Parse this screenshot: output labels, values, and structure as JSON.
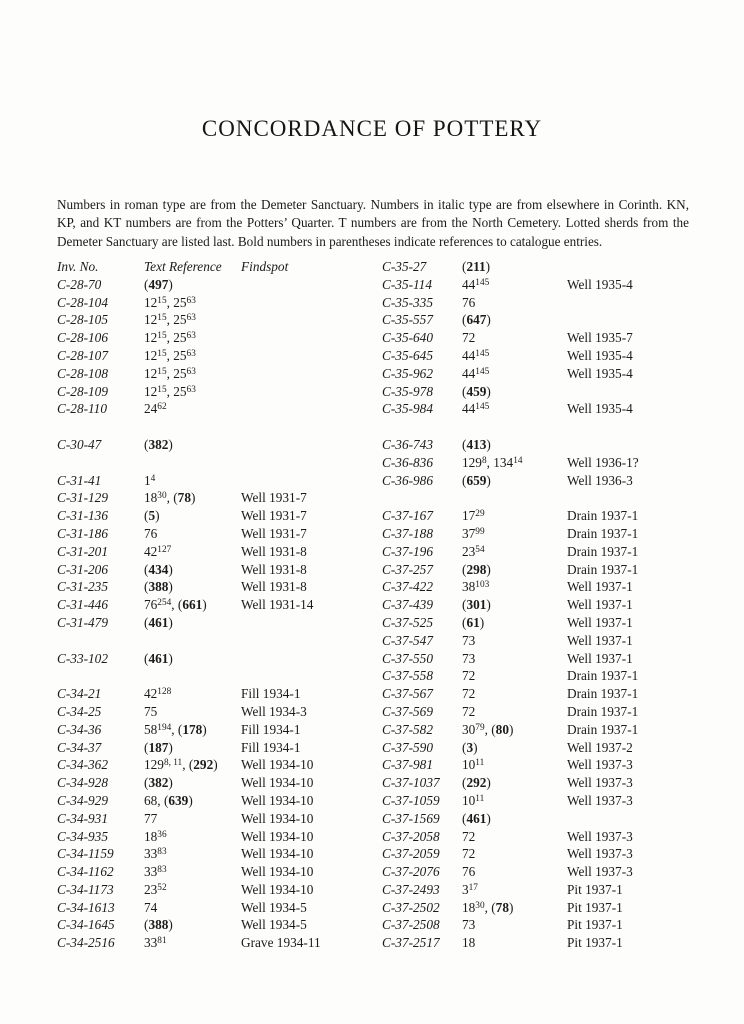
{
  "colors": {
    "ink": "#1b1b1b",
    "paper": "#fdfdfc"
  },
  "document": {
    "title": "CONCORDANCE OF POTTERY",
    "intro": "Numbers in roman type are from the Demeter Sanctuary. Numbers in italic type are from elsewhere in Corinth. KN, KP, and KT numbers are from the Potters’ Quarter. T numbers are from the North Cemetery. Lotted sherds from the Demeter Sanctuary are listed last. Bold numbers in parentheses indicate references to catalogue entries."
  },
  "concordance": {
    "headers": {
      "inv": "Inv. No.",
      "ref": "Text Reference",
      "find": "Findspot"
    },
    "left": [
      {
        "inv": "C-28-70",
        "ref": [
          [
            "t",
            "("
          ],
          [
            "b",
            "497"
          ],
          [
            "t",
            ")"
          ]
        ],
        "find": ""
      },
      {
        "inv": "C-28-104",
        "ref": [
          [
            "t",
            "12"
          ],
          [
            "s",
            "15"
          ],
          [
            "t",
            ", 25"
          ],
          [
            "s",
            "63"
          ]
        ],
        "find": ""
      },
      {
        "inv": "C-28-105",
        "ref": [
          [
            "t",
            "12"
          ],
          [
            "s",
            "15"
          ],
          [
            "t",
            ", 25"
          ],
          [
            "s",
            "63"
          ]
        ],
        "find": ""
      },
      {
        "inv": "C-28-106",
        "ref": [
          [
            "t",
            "12"
          ],
          [
            "s",
            "15"
          ],
          [
            "t",
            ", 25"
          ],
          [
            "s",
            "63"
          ]
        ],
        "find": ""
      },
      {
        "inv": "C-28-107",
        "ref": [
          [
            "t",
            "12"
          ],
          [
            "s",
            "15"
          ],
          [
            "t",
            ", 25"
          ],
          [
            "s",
            "63"
          ]
        ],
        "find": ""
      },
      {
        "inv": "C-28-108",
        "ref": [
          [
            "t",
            "12"
          ],
          [
            "s",
            "15"
          ],
          [
            "t",
            ", 25"
          ],
          [
            "s",
            "63"
          ]
        ],
        "find": ""
      },
      {
        "inv": "C-28-109",
        "ref": [
          [
            "t",
            "12"
          ],
          [
            "s",
            "15"
          ],
          [
            "t",
            ", 25"
          ],
          [
            "s",
            "63"
          ]
        ],
        "find": ""
      },
      {
        "inv": "C-28-110",
        "ref": [
          [
            "t",
            "24"
          ],
          [
            "s",
            "62"
          ]
        ],
        "find": ""
      },
      {
        "spacer": true
      },
      {
        "inv": "C-30-47",
        "ref": [
          [
            "t",
            "("
          ],
          [
            "b",
            "382"
          ],
          [
            "t",
            ")"
          ]
        ],
        "find": ""
      },
      {
        "spacer": true
      },
      {
        "inv": "C-31-41",
        "ref": [
          [
            "t",
            "1"
          ],
          [
            "s",
            "4"
          ]
        ],
        "find": ""
      },
      {
        "inv": "C-31-129",
        "ref": [
          [
            "t",
            "18"
          ],
          [
            "s",
            "30"
          ],
          [
            "t",
            ", ("
          ],
          [
            "b",
            "78"
          ],
          [
            "t",
            ")"
          ]
        ],
        "find": "Well 1931-7"
      },
      {
        "inv": "C-31-136",
        "ref": [
          [
            "t",
            "("
          ],
          [
            "b",
            "5"
          ],
          [
            "t",
            ")"
          ]
        ],
        "find": "Well 1931-7"
      },
      {
        "inv": "C-31-186",
        "ref": [
          [
            "t",
            "76"
          ]
        ],
        "find": "Well 1931-7"
      },
      {
        "inv": "C-31-201",
        "ref": [
          [
            "t",
            "42"
          ],
          [
            "s",
            "127"
          ]
        ],
        "find": "Well 1931-8"
      },
      {
        "inv": "C-31-206",
        "ref": [
          [
            "t",
            "("
          ],
          [
            "b",
            "434"
          ],
          [
            "t",
            ")"
          ]
        ],
        "find": "Well 1931-8"
      },
      {
        "inv": "C-31-235",
        "ref": [
          [
            "t",
            "("
          ],
          [
            "b",
            "388"
          ],
          [
            "t",
            ")"
          ]
        ],
        "find": "Well 1931-8"
      },
      {
        "inv": "C-31-446",
        "ref": [
          [
            "t",
            "76"
          ],
          [
            "s",
            "254"
          ],
          [
            "t",
            ", ("
          ],
          [
            "b",
            "661"
          ],
          [
            "t",
            ")"
          ]
        ],
        "find": "Well 1931-14"
      },
      {
        "inv": "C-31-479",
        "ref": [
          [
            "t",
            "("
          ],
          [
            "b",
            "461"
          ],
          [
            "t",
            ")"
          ]
        ],
        "find": ""
      },
      {
        "spacer": true
      },
      {
        "inv": "C-33-102",
        "ref": [
          [
            "t",
            "("
          ],
          [
            "b",
            "461"
          ],
          [
            "t",
            ")"
          ]
        ],
        "find": ""
      },
      {
        "spacer": true
      },
      {
        "inv": "C-34-21",
        "ref": [
          [
            "t",
            "42"
          ],
          [
            "s",
            "128"
          ]
        ],
        "find": "Fill 1934-1"
      },
      {
        "inv": "C-34-25",
        "ref": [
          [
            "t",
            "75"
          ]
        ],
        "find": "Well 1934-3"
      },
      {
        "inv": "C-34-36",
        "ref": [
          [
            "t",
            "58"
          ],
          [
            "s",
            "194"
          ],
          [
            "t",
            ", ("
          ],
          [
            "b",
            "178"
          ],
          [
            "t",
            ")"
          ]
        ],
        "find": "Fill 1934-1"
      },
      {
        "inv": "C-34-37",
        "ref": [
          [
            "t",
            "("
          ],
          [
            "b",
            "187"
          ],
          [
            "t",
            ")"
          ]
        ],
        "find": "Fill 1934-1"
      },
      {
        "inv": "C-34-362",
        "ref": [
          [
            "t",
            "129"
          ],
          [
            "s",
            "8, 11"
          ],
          [
            "t",
            ", ("
          ],
          [
            "b",
            "292"
          ],
          [
            "t",
            ")"
          ]
        ],
        "find": "Well 1934-10"
      },
      {
        "inv": "C-34-928",
        "ref": [
          [
            "t",
            "("
          ],
          [
            "b",
            "382"
          ],
          [
            "t",
            ")"
          ]
        ],
        "find": "Well 1934-10"
      },
      {
        "inv": "C-34-929",
        "ref": [
          [
            "t",
            "68, ("
          ],
          [
            "b",
            "639"
          ],
          [
            "t",
            ")"
          ]
        ],
        "find": "Well 1934-10"
      },
      {
        "inv": "C-34-931",
        "ref": [
          [
            "t",
            "77"
          ]
        ],
        "find": "Well 1934-10"
      },
      {
        "inv": "C-34-935",
        "ref": [
          [
            "t",
            "18"
          ],
          [
            "s",
            "36"
          ]
        ],
        "find": "Well 1934-10"
      },
      {
        "inv": "C-34-1159",
        "ref": [
          [
            "t",
            "33"
          ],
          [
            "s",
            "83"
          ]
        ],
        "find": "Well 1934-10"
      },
      {
        "inv": "C-34-1162",
        "ref": [
          [
            "t",
            "33"
          ],
          [
            "s",
            "83"
          ]
        ],
        "find": "Well 1934-10"
      },
      {
        "inv": "C-34-1173",
        "ref": [
          [
            "t",
            "23"
          ],
          [
            "s",
            "52"
          ]
        ],
        "find": "Well 1934-10"
      },
      {
        "inv": "C-34-1613",
        "ref": [
          [
            "t",
            "74"
          ]
        ],
        "find": "Well 1934-5"
      },
      {
        "inv": "C-34-1645",
        "ref": [
          [
            "t",
            "("
          ],
          [
            "b",
            "388"
          ],
          [
            "t",
            ")"
          ]
        ],
        "find": "Well 1934-5"
      },
      {
        "inv": "C-34-2516",
        "ref": [
          [
            "t",
            "33"
          ],
          [
            "s",
            "81"
          ]
        ],
        "find": "Grave 1934-11"
      }
    ],
    "right": [
      {
        "inv": "C-35-27",
        "ref": [
          [
            "t",
            "("
          ],
          [
            "b",
            "211"
          ],
          [
            "t",
            ")"
          ]
        ],
        "find": ""
      },
      {
        "inv": "C-35-114",
        "ref": [
          [
            "t",
            "44"
          ],
          [
            "s",
            "145"
          ]
        ],
        "find": "Well 1935-4"
      },
      {
        "inv": "C-35-335",
        "ref": [
          [
            "t",
            "76"
          ]
        ],
        "find": ""
      },
      {
        "inv": "C-35-557",
        "ref": [
          [
            "t",
            "("
          ],
          [
            "b",
            "647"
          ],
          [
            "t",
            ")"
          ]
        ],
        "find": ""
      },
      {
        "inv": "C-35-640",
        "ref": [
          [
            "t",
            "72"
          ]
        ],
        "find": "Well 1935-7"
      },
      {
        "inv": "C-35-645",
        "ref": [
          [
            "t",
            "44"
          ],
          [
            "s",
            "145"
          ]
        ],
        "find": "Well 1935-4"
      },
      {
        "inv": "C-35-962",
        "ref": [
          [
            "t",
            "44"
          ],
          [
            "s",
            "145"
          ]
        ],
        "find": "Well 1935-4"
      },
      {
        "inv": "C-35-978",
        "ref": [
          [
            "t",
            "("
          ],
          [
            "b",
            "459"
          ],
          [
            "t",
            ")"
          ]
        ],
        "find": ""
      },
      {
        "inv": "C-35-984",
        "ref": [
          [
            "t",
            "44"
          ],
          [
            "s",
            "145"
          ]
        ],
        "find": "Well 1935-4"
      },
      {
        "spacer": true
      },
      {
        "inv": "C-36-743",
        "ref": [
          [
            "t",
            "("
          ],
          [
            "b",
            "413"
          ],
          [
            "t",
            ")"
          ]
        ],
        "find": ""
      },
      {
        "inv": "C-36-836",
        "ref": [
          [
            "t",
            "129"
          ],
          [
            "s",
            "8"
          ],
          [
            "t",
            ", 134"
          ],
          [
            "s",
            "14"
          ]
        ],
        "find": "Well 1936-1?"
      },
      {
        "inv": "C-36-986",
        "ref": [
          [
            "t",
            "("
          ],
          [
            "b",
            "659"
          ],
          [
            "t",
            ")"
          ]
        ],
        "find": "Well 1936-3"
      },
      {
        "spacer": true
      },
      {
        "inv": "C-37-167",
        "ref": [
          [
            "t",
            "17"
          ],
          [
            "s",
            "29"
          ]
        ],
        "find": "Drain 1937-1"
      },
      {
        "inv": "C-37-188",
        "ref": [
          [
            "t",
            "37"
          ],
          [
            "s",
            "99"
          ]
        ],
        "find": "Drain 1937-1"
      },
      {
        "inv": "C-37-196",
        "ref": [
          [
            "t",
            "23"
          ],
          [
            "s",
            "54"
          ]
        ],
        "find": "Drain 1937-1"
      },
      {
        "inv": "C-37-257",
        "ref": [
          [
            "t",
            "("
          ],
          [
            "b",
            "298"
          ],
          [
            "t",
            ")"
          ]
        ],
        "find": "Drain 1937-1"
      },
      {
        "inv": "C-37-422",
        "ref": [
          [
            "t",
            "38"
          ],
          [
            "s",
            "103"
          ]
        ],
        "find": "Well 1937-1"
      },
      {
        "inv": "C-37-439",
        "ref": [
          [
            "t",
            "("
          ],
          [
            "b",
            "301"
          ],
          [
            "t",
            ")"
          ]
        ],
        "find": "Well 1937-1"
      },
      {
        "inv": "C-37-525",
        "ref": [
          [
            "t",
            "("
          ],
          [
            "b",
            "61"
          ],
          [
            "t",
            ")"
          ]
        ],
        "find": "Well 1937-1"
      },
      {
        "inv": "C-37-547",
        "ref": [
          [
            "t",
            "73"
          ]
        ],
        "find": "Well 1937-1"
      },
      {
        "inv": "C-37-550",
        "ref": [
          [
            "t",
            "73"
          ]
        ],
        "find": "Well 1937-1"
      },
      {
        "inv": "C-37-558",
        "ref": [
          [
            "t",
            "72"
          ]
        ],
        "find": "Drain 1937-1"
      },
      {
        "inv": "C-37-567",
        "ref": [
          [
            "t",
            "72"
          ]
        ],
        "find": "Drain 1937-1"
      },
      {
        "inv": "C-37-569",
        "ref": [
          [
            "t",
            "72"
          ]
        ],
        "find": "Drain 1937-1"
      },
      {
        "inv": "C-37-582",
        "ref": [
          [
            "t",
            "30"
          ],
          [
            "s",
            "79"
          ],
          [
            "t",
            ", ("
          ],
          [
            "b",
            "80"
          ],
          [
            "t",
            ")"
          ]
        ],
        "find": "Drain 1937-1"
      },
      {
        "inv": "C-37-590",
        "ref": [
          [
            "t",
            "("
          ],
          [
            "b",
            "3"
          ],
          [
            "t",
            ")"
          ]
        ],
        "find": "Well 1937-2"
      },
      {
        "inv": "C-37-981",
        "ref": [
          [
            "t",
            "10"
          ],
          [
            "s",
            "11"
          ]
        ],
        "find": "Well 1937-3"
      },
      {
        "inv": "C-37-1037",
        "ref": [
          [
            "t",
            "("
          ],
          [
            "b",
            "292"
          ],
          [
            "t",
            ")"
          ]
        ],
        "find": "Well 1937-3"
      },
      {
        "inv": "C-37-1059",
        "ref": [
          [
            "t",
            "10"
          ],
          [
            "s",
            "11"
          ]
        ],
        "find": "Well 1937-3"
      },
      {
        "inv": "C-37-1569",
        "ref": [
          [
            "t",
            "("
          ],
          [
            "b",
            "461"
          ],
          [
            "t",
            ")"
          ]
        ],
        "find": ""
      },
      {
        "inv": "C-37-2058",
        "ref": [
          [
            "t",
            "72"
          ]
        ],
        "find": "Well 1937-3"
      },
      {
        "inv": "C-37-2059",
        "ref": [
          [
            "t",
            "72"
          ]
        ],
        "find": "Well 1937-3"
      },
      {
        "inv": "C-37-2076",
        "ref": [
          [
            "t",
            "76"
          ]
        ],
        "find": "Well 1937-3"
      },
      {
        "inv": "C-37-2493",
        "ref": [
          [
            "t",
            "3"
          ],
          [
            "s",
            "17"
          ]
        ],
        "find": "Pit 1937-1"
      },
      {
        "inv": "C-37-2502",
        "ref": [
          [
            "t",
            "18"
          ],
          [
            "s",
            "30"
          ],
          [
            "t",
            ", ("
          ],
          [
            "b",
            "78"
          ],
          [
            "t",
            ")"
          ]
        ],
        "find": "Pit 1937-1"
      },
      {
        "inv": "C-37-2508",
        "ref": [
          [
            "t",
            "73"
          ]
        ],
        "find": "Pit 1937-1"
      },
      {
        "inv": "C-37-2517",
        "ref": [
          [
            "t",
            "18"
          ]
        ],
        "find": "Pit 1937-1"
      }
    ]
  }
}
